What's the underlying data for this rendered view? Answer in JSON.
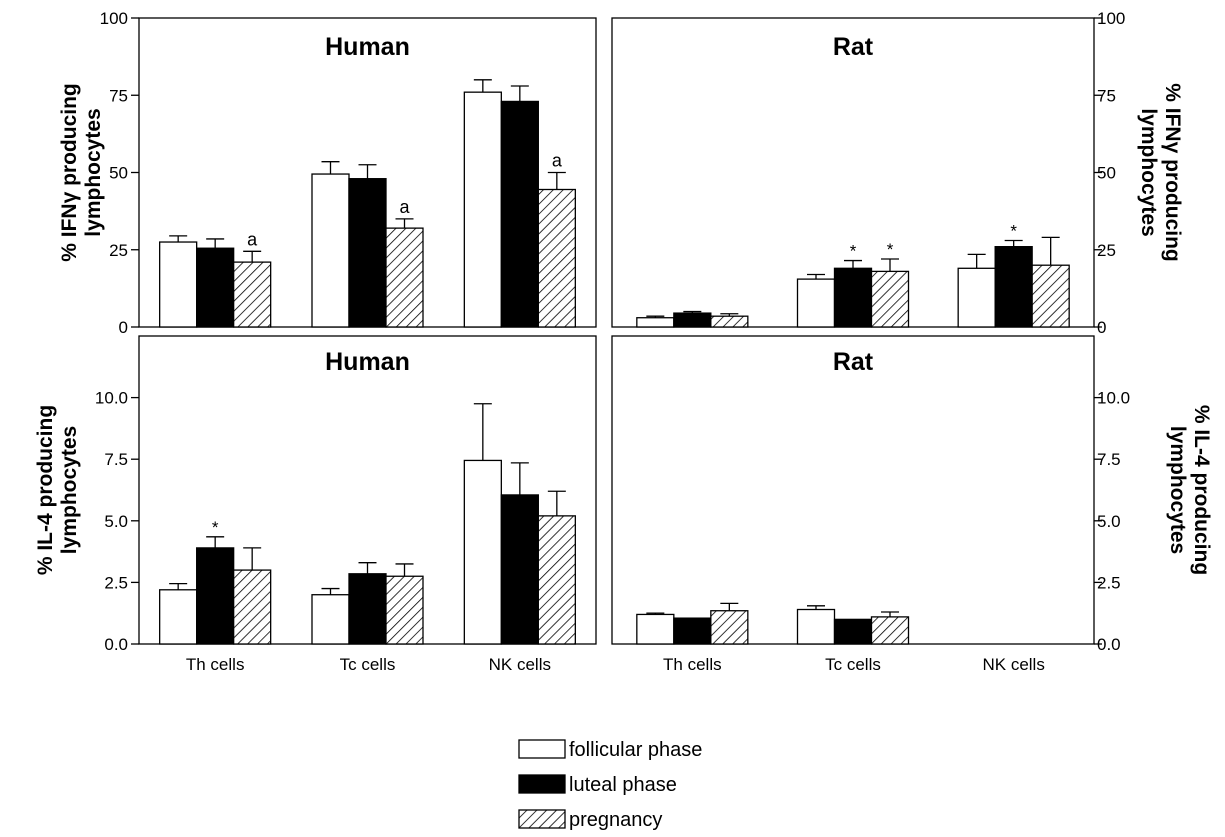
{
  "legend": [
    {
      "label": "follicular phase",
      "fill": "white"
    },
    {
      "label": "luteal phase",
      "fill": "black"
    },
    {
      "label": "pregnancy",
      "fill": "hatch"
    }
  ],
  "chart_data": [
    {
      "type": "bar",
      "title": "Human",
      "ylabel": [
        "% IFNγ producing",
        "lymphocytes"
      ],
      "ylim": [
        0,
        100
      ],
      "yticks": [
        "0",
        "25",
        "50",
        "75",
        "100"
      ],
      "categories": [
        "Th cells",
        "Tc cells",
        "NK cells"
      ],
      "series": [
        {
          "name": "follicular phase",
          "values": [
            27.5,
            49.5,
            76
          ],
          "errors": [
            2,
            4,
            4
          ]
        },
        {
          "name": "luteal phase",
          "values": [
            25.5,
            48,
            73
          ],
          "errors": [
            3,
            4.5,
            5
          ]
        },
        {
          "name": "pregnancy",
          "values": [
            21,
            32,
            44.5
          ],
          "errors": [
            3.5,
            3,
            5.5
          ]
        }
      ],
      "annotations": [
        {
          "category": 0,
          "series": 2,
          "text": "a"
        },
        {
          "category": 1,
          "series": 2,
          "text": "a"
        },
        {
          "category": 2,
          "series": 2,
          "text": "a"
        }
      ]
    },
    {
      "type": "bar",
      "title": "Rat",
      "ylabel": [
        "% IFNγ producing",
        "lymphocytes"
      ],
      "ylim": [
        0,
        100
      ],
      "yticks": [
        "0",
        "25",
        "50",
        "75",
        "100"
      ],
      "categories": [
        "Th cells",
        "Tc cells",
        "NK cells"
      ],
      "series": [
        {
          "name": "follicular phase",
          "values": [
            3,
            15.5,
            19
          ],
          "errors": [
            0.5,
            1.5,
            4.5
          ]
        },
        {
          "name": "luteal phase",
          "values": [
            4.5,
            19,
            26
          ],
          "errors": [
            0.5,
            2.5,
            2
          ]
        },
        {
          "name": "pregnancy",
          "values": [
            3.5,
            18,
            20
          ],
          "errors": [
            0.8,
            4,
            9
          ]
        }
      ],
      "annotations": [
        {
          "category": 1,
          "series": 1,
          "text": "*"
        },
        {
          "category": 1,
          "series": 2,
          "text": "*"
        },
        {
          "category": 2,
          "series": 1,
          "text": "*"
        }
      ]
    },
    {
      "type": "bar",
      "title": "Human",
      "ylabel": [
        "% IL-4 producing",
        "lymphocytes"
      ],
      "ylim": [
        0,
        12.5
      ],
      "yticks": [
        "0.0",
        "2.5",
        "5.0",
        "7.5",
        "10.0"
      ],
      "categories": [
        "Th cells",
        "Tc cells",
        "NK cells"
      ],
      "series": [
        {
          "name": "follicular phase",
          "values": [
            2.2,
            2.0,
            7.45
          ],
          "errors": [
            0.25,
            0.25,
            2.3
          ]
        },
        {
          "name": "luteal phase",
          "values": [
            3.9,
            2.85,
            6.05
          ],
          "errors": [
            0.45,
            0.45,
            1.3
          ]
        },
        {
          "name": "pregnancy",
          "values": [
            3.0,
            2.75,
            5.2
          ],
          "errors": [
            0.9,
            0.5,
            1.0
          ]
        }
      ],
      "annotations": [
        {
          "category": 0,
          "series": 1,
          "text": "*"
        }
      ]
    },
    {
      "type": "bar",
      "title": "Rat",
      "ylabel": [
        "% IL-4 producing",
        "lymphocytes"
      ],
      "ylim": [
        0,
        12.5
      ],
      "yticks": [
        "0.0",
        "2.5",
        "5.0",
        "7.5",
        "10.0"
      ],
      "categories": [
        "Th cells",
        "Tc cells",
        "NK cells"
      ],
      "series": [
        {
          "name": "follicular phase",
          "values": [
            1.2,
            1.4,
            null
          ],
          "errors": [
            0.05,
            0.15,
            null
          ]
        },
        {
          "name": "luteal phase",
          "values": [
            1.05,
            1.0,
            null
          ],
          "errors": [
            0,
            0,
            null
          ]
        },
        {
          "name": "pregnancy",
          "values": [
            1.35,
            1.1,
            null
          ],
          "errors": [
            0.3,
            0.2,
            null
          ]
        }
      ],
      "annotations": []
    }
  ]
}
